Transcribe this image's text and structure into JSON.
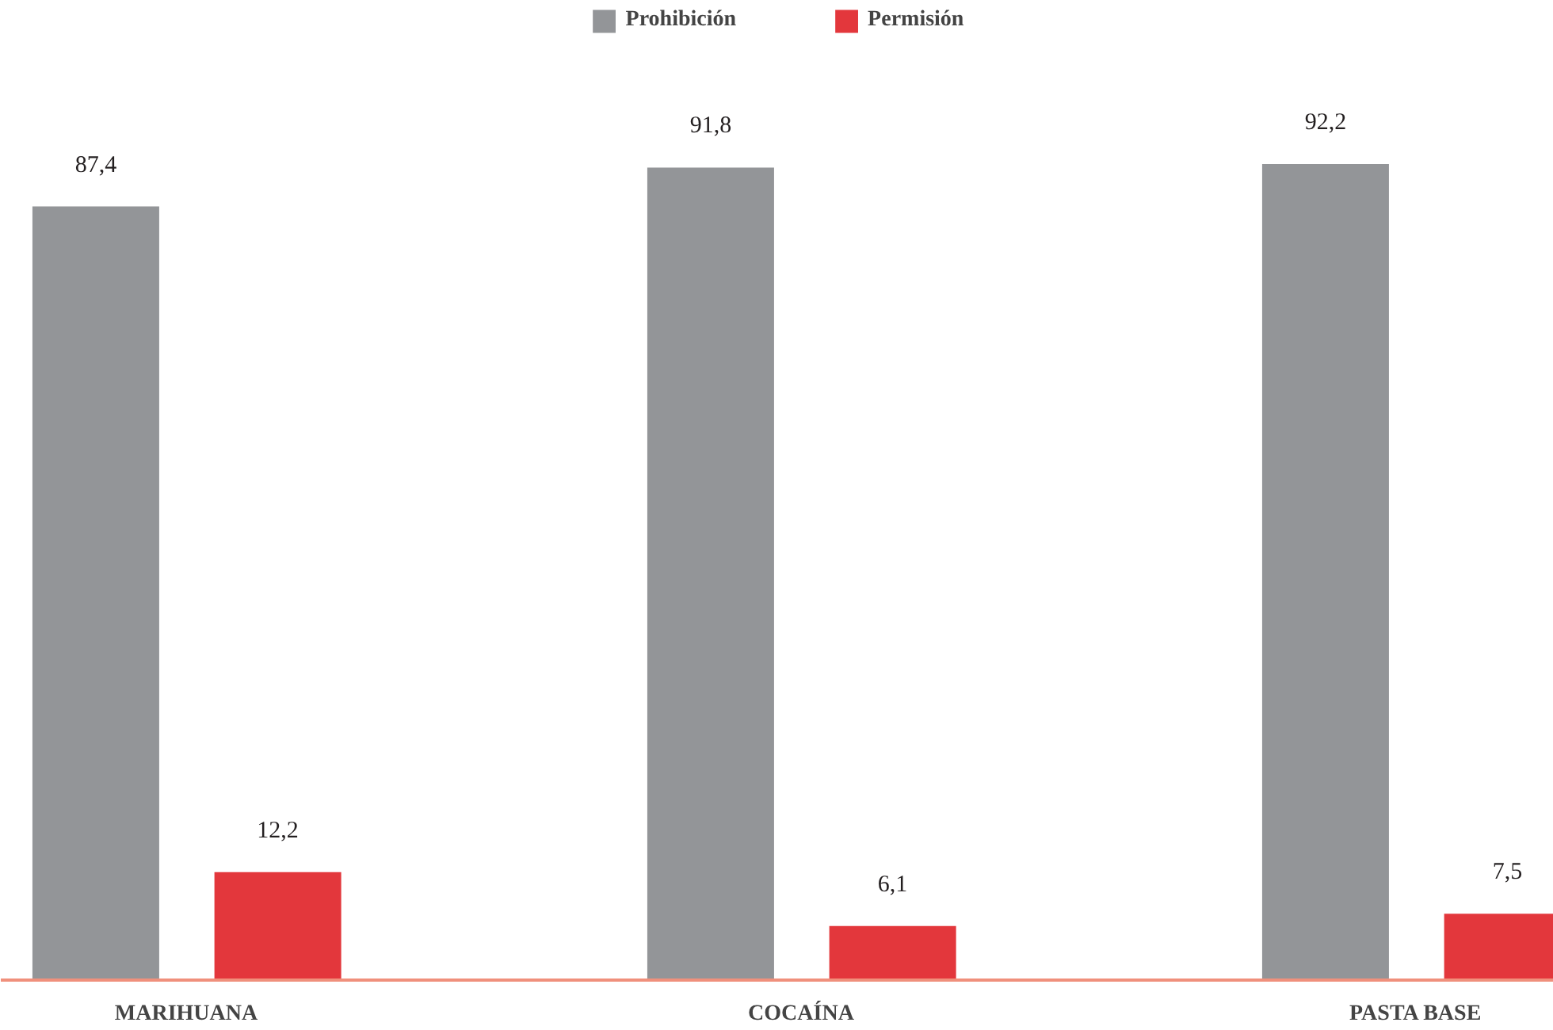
{
  "chart_data": {
    "type": "bar",
    "categories": [
      "MARIHUANA",
      "COCAÍNA",
      "PASTA BASE"
    ],
    "series": [
      {
        "name": "Prohibición",
        "color": "#939598",
        "values": [
          87.4,
          91.8,
          92.2
        ],
        "value_labels": [
          "87,4",
          "91,8",
          "92,2"
        ]
      },
      {
        "name": "Permisión",
        "color": "#e3373c",
        "values": [
          12.2,
          6.1,
          7.5
        ],
        "value_labels": [
          "12,2",
          "6,1",
          "7,5"
        ]
      }
    ],
    "legend": "top",
    "grid": false
  }
}
